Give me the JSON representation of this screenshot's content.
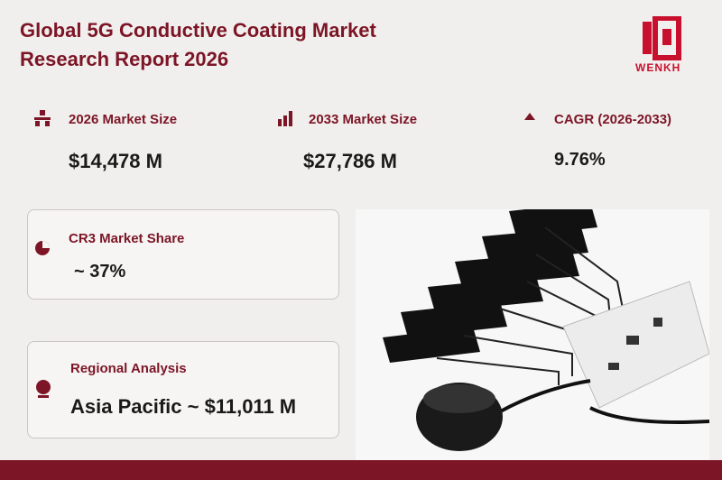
{
  "header": {
    "title_lines": [
      "Global 5G Conductive Coating Market",
      "Research Report 2026"
    ],
    "logo": "WENKH"
  },
  "stats": [
    {
      "label": "2026 Market Size",
      "value": "$14,478 M"
    },
    {
      "label": "2033 Market Size",
      "value": "$27,786 M"
    },
    {
      "label": "CAGR (2026-2033)",
      "value": "9.76%"
    }
  ],
  "cards": [
    {
      "label": "CR3 Market Share",
      "value": "~ 37%"
    },
    {
      "label": "Regional Analysis",
      "value": "Asia Pacific ~ $11,011 M"
    }
  ]
}
